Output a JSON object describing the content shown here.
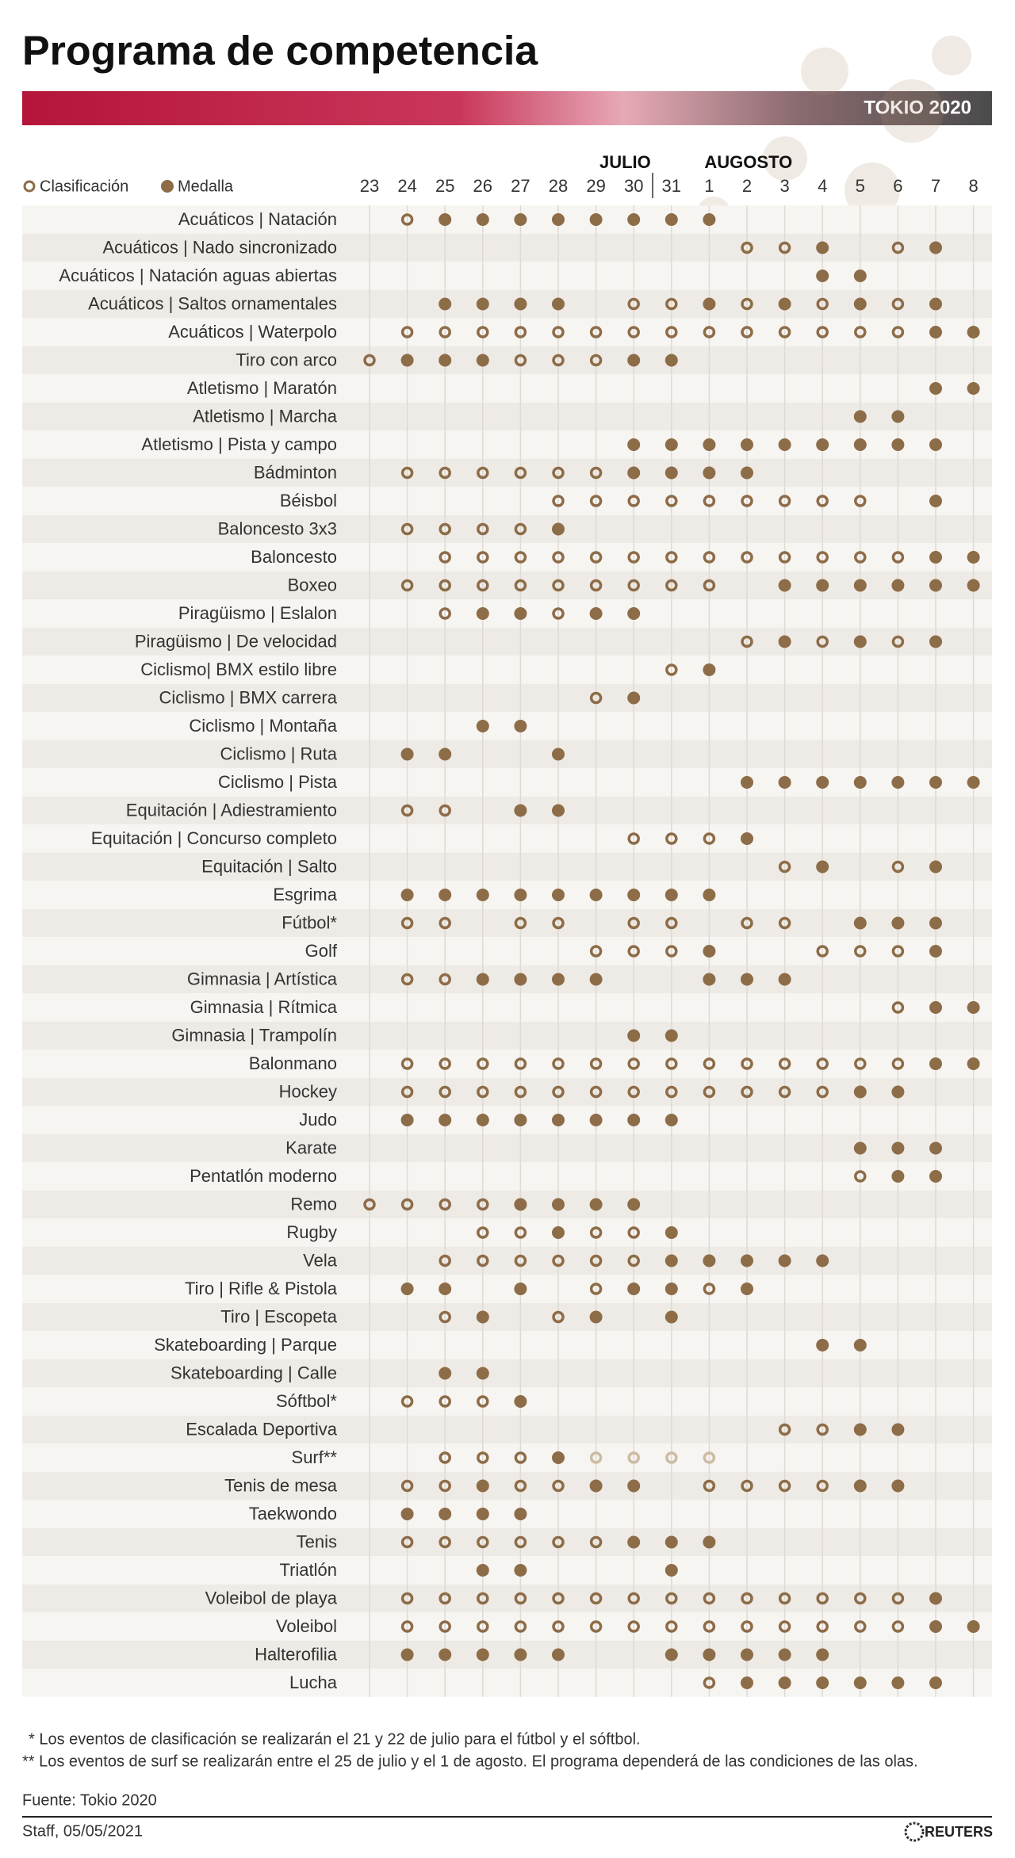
{
  "header": {
    "title": "Programa de competencia",
    "badge": "TOKIO 2020"
  },
  "legend": {
    "qualification": "Clasificación",
    "medal": "Medalla"
  },
  "months": [
    {
      "label": "JULIO",
      "start": 0
    },
    {
      "label": "AUGOSTO",
      "start": 9
    }
  ],
  "days": [
    "23",
    "24",
    "25",
    "26",
    "27",
    "28",
    "29",
    "30",
    "31",
    "1",
    "2",
    "3",
    "4",
    "5",
    "6",
    "7",
    "8"
  ],
  "rows": [
    {
      "sport": "Acuáticos | Natación",
      "cells": ".oxxxxxxxx......."
    },
    {
      "sport": "Acuáticos | Nado sincronizado",
      "cells": "..........oox.ox."
    },
    {
      "sport": "Acuáticos | Natación aguas abiertas",
      "cells": "............xx..."
    },
    {
      "sport": "Acuáticos | Saltos ornamentales",
      "cells": "..xxxx.ooxoxoxox."
    },
    {
      "sport": "Acuáticos | Waterpolo",
      "cells": ".ooooooooooooooxx"
    },
    {
      "sport": "Tiro con arco",
      "cells": "oxxxoooxx........"
    },
    {
      "sport": "Atletismo | Maratón",
      "cells": "...............xx"
    },
    {
      "sport": "Atletismo | Marcha",
      "cells": ".............xx.."
    },
    {
      "sport": "Atletismo | Pista y campo",
      "cells": ".......xxxxxxxxx."
    },
    {
      "sport": "Bádminton",
      "cells": ".ooooooxxxx......"
    },
    {
      "sport": "Béisbol",
      "cells": ".....ooooooooo.x."
    },
    {
      "sport": "Baloncesto 3x3",
      "cells": ".oooox..........."
    },
    {
      "sport": "Baloncesto",
      "cells": "..oooooooooooooxx"
    },
    {
      "sport": "Boxeo",
      "cells": ".ooooooooo.xxxxxx"
    },
    {
      "sport": "Piragüismo | Eslalon",
      "cells": "..oxxoxx........."
    },
    {
      "sport": "Piragüismo | De velocidad",
      "cells": "..........oxoxox."
    },
    {
      "sport": "Ciclismo| BMX estilo libre",
      "cells": "........ox......."
    },
    {
      "sport": "Ciclismo | BMX carrera",
      "cells": "......ox........."
    },
    {
      "sport": "Ciclismo | Montaña",
      "cells": "...xx............"
    },
    {
      "sport": "Ciclismo | Ruta",
      "cells": ".xx..x..........."
    },
    {
      "sport": "Ciclismo | Pista",
      "cells": "..........xxxxxxx"
    },
    {
      "sport": "Equitación | Adiestramiento",
      "cells": ".oo.xx..........."
    },
    {
      "sport": "Equitación | Concurso completo",
      "cells": ".......ooox......"
    },
    {
      "sport": "Equitación | Salto",
      "cells": "...........ox.ox."
    },
    {
      "sport": "Esgrima",
      "cells": ".xxxxxxxxx......."
    },
    {
      "sport": "Fútbol*",
      "cells": ".oo.oo.oo.oo.xxx."
    },
    {
      "sport": "Golf",
      "cells": "......ooox..ooox."
    },
    {
      "sport": "Gimnasia | Artística",
      "cells": ".ooxxxx..xxx....."
    },
    {
      "sport": "Gimnasia | Rítmica",
      "cells": "..............oxx"
    },
    {
      "sport": "Gimnasia | Trampolín",
      "cells": ".......xx........"
    },
    {
      "sport": "Balonmano",
      "cells": ".ooooooooooooooxx"
    },
    {
      "sport": "Hockey",
      "cells": ".ooooooooooooxx.."
    },
    {
      "sport": "Judo",
      "cells": ".xxxxxxxx........"
    },
    {
      "sport": "Karate",
      "cells": ".............xxx."
    },
    {
      "sport": "Pentatlón moderno",
      "cells": ".............oxx."
    },
    {
      "sport": "Remo",
      "cells": "ooooxxxx........."
    },
    {
      "sport": "Rugby",
      "cells": "...ooxoox........"
    },
    {
      "sport": "Vela",
      "cells": "..ooooooxxxxx...."
    },
    {
      "sport": "Tiro | Rifle & Pistola",
      "cells": ".xx.x.oxxox......"
    },
    {
      "sport": "Tiro | Escopeta",
      "cells": "..ox.ox.x........"
    },
    {
      "sport": "Skateboarding | Parque",
      "cells": "............xx..."
    },
    {
      "sport": "Skateboarding | Calle",
      "cells": "..xx............."
    },
    {
      "sport": "Sóftbol*",
      "cells": ".ooox............"
    },
    {
      "sport": "Escalada Deportiva",
      "cells": "...........ooxx.."
    },
    {
      "sport": "Surf**",
      "cells": "..oooxffff......."
    },
    {
      "sport": "Tenis de mesa",
      "cells": ".ooxooxx.ooooxx.."
    },
    {
      "sport": "Taekwondo",
      "cells": ".xxxx............"
    },
    {
      "sport": "Tenis",
      "cells": ".ooooooxxx......."
    },
    {
      "sport": "Triatlón",
      "cells": "...xx...x........"
    },
    {
      "sport": "Voleibol de playa",
      "cells": ".oooooooooooooox."
    },
    {
      "sport": "Voleibol",
      "cells": ".ooooooooooooooxx"
    },
    {
      "sport": "Halterofilia",
      "cells": ".xxxxx..xxxxx...."
    },
    {
      "sport": "Lucha",
      "cells": ".........oxxxxxx."
    }
  ],
  "footnotes": [
    "* Los eventos de clasificación se realizarán el 21 y 22 de julio para el fútbol y el sóftbol.",
    "** Los eventos de surf se realizarán entre el 25 de julio y el 1 de agosto. El programa dependerá de las condiciones de las olas."
  ],
  "source": "Fuente: Tokio 2020",
  "credit": "Staff, 05/05/2021",
  "brand": "REUTERS"
}
